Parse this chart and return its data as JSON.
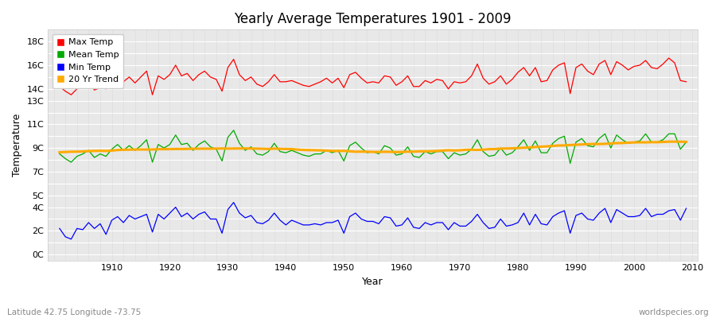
{
  "title": "Yearly Average Temperatures 1901 - 2009",
  "xlabel": "Year",
  "ylabel": "Temperature",
  "subtitle_left": "Latitude 42.75 Longitude -73.75",
  "subtitle_right": "worldspecies.org",
  "years": [
    1901,
    1902,
    1903,
    1904,
    1905,
    1906,
    1907,
    1908,
    1909,
    1910,
    1911,
    1912,
    1913,
    1914,
    1915,
    1916,
    1917,
    1918,
    1919,
    1920,
    1921,
    1922,
    1923,
    1924,
    1925,
    1926,
    1927,
    1928,
    1929,
    1930,
    1931,
    1932,
    1933,
    1934,
    1935,
    1936,
    1937,
    1938,
    1939,
    1940,
    1941,
    1942,
    1943,
    1944,
    1945,
    1946,
    1947,
    1948,
    1949,
    1950,
    1951,
    1952,
    1953,
    1954,
    1955,
    1956,
    1957,
    1958,
    1959,
    1960,
    1961,
    1962,
    1963,
    1964,
    1965,
    1966,
    1967,
    1968,
    1969,
    1970,
    1971,
    1972,
    1973,
    1974,
    1975,
    1976,
    1977,
    1978,
    1979,
    1980,
    1981,
    1982,
    1983,
    1984,
    1985,
    1986,
    1987,
    1988,
    1989,
    1990,
    1991,
    1992,
    1993,
    1994,
    1995,
    1996,
    1997,
    1998,
    1999,
    2000,
    2001,
    2002,
    2003,
    2004,
    2005,
    2006,
    2007,
    2008,
    2009
  ],
  "max_temp": [
    14.2,
    13.8,
    13.5,
    14.0,
    14.3,
    14.5,
    13.9,
    14.1,
    14.0,
    14.8,
    15.2,
    14.6,
    15.0,
    14.5,
    15.0,
    15.5,
    13.5,
    15.1,
    14.8,
    15.2,
    16.0,
    15.1,
    15.3,
    14.7,
    15.2,
    15.5,
    15.0,
    14.8,
    13.8,
    15.8,
    16.5,
    15.2,
    14.7,
    15.0,
    14.4,
    14.2,
    14.6,
    15.2,
    14.6,
    14.6,
    14.7,
    14.5,
    14.3,
    14.2,
    14.4,
    14.6,
    14.9,
    14.5,
    14.9,
    14.1,
    15.2,
    15.4,
    14.9,
    14.5,
    14.6,
    14.5,
    15.1,
    15.0,
    14.3,
    14.6,
    15.1,
    14.2,
    14.2,
    14.7,
    14.5,
    14.8,
    14.7,
    14.0,
    14.6,
    14.5,
    14.6,
    15.1,
    16.1,
    14.9,
    14.4,
    14.6,
    15.1,
    14.4,
    14.8,
    15.4,
    15.8,
    15.1,
    15.8,
    14.6,
    14.7,
    15.6,
    16.0,
    16.2,
    13.6,
    15.8,
    16.1,
    15.5,
    15.2,
    16.1,
    16.4,
    15.2,
    16.3,
    16.0,
    15.6,
    15.9,
    16.0,
    16.4,
    15.8,
    15.7,
    16.1,
    16.6,
    16.2,
    14.7,
    14.6
  ],
  "mean_temp": [
    8.5,
    8.1,
    7.8,
    8.3,
    8.5,
    8.8,
    8.2,
    8.5,
    8.3,
    8.9,
    9.3,
    8.8,
    9.2,
    8.8,
    9.2,
    9.7,
    7.8,
    9.3,
    9.0,
    9.3,
    10.1,
    9.3,
    9.4,
    8.8,
    9.3,
    9.6,
    9.1,
    8.9,
    7.9,
    9.9,
    10.5,
    9.4,
    8.8,
    9.1,
    8.5,
    8.4,
    8.7,
    9.4,
    8.7,
    8.6,
    8.8,
    8.6,
    8.4,
    8.3,
    8.5,
    8.5,
    8.8,
    8.6,
    8.8,
    7.9,
    9.2,
    9.5,
    9.0,
    8.6,
    8.7,
    8.5,
    9.2,
    9.0,
    8.4,
    8.5,
    9.1,
    8.3,
    8.2,
    8.7,
    8.5,
    8.7,
    8.7,
    8.1,
    8.6,
    8.4,
    8.5,
    8.9,
    9.7,
    8.7,
    8.3,
    8.4,
    9.0,
    8.4,
    8.6,
    9.1,
    9.7,
    8.8,
    9.6,
    8.6,
    8.6,
    9.4,
    9.8,
    10.0,
    7.7,
    9.5,
    9.8,
    9.2,
    9.1,
    9.8,
    10.2,
    9.0,
    10.1,
    9.7,
    9.4,
    9.5,
    9.6,
    10.2,
    9.5,
    9.5,
    9.7,
    10.2,
    10.2,
    8.9,
    9.5
  ],
  "min_temp": [
    2.2,
    1.5,
    1.3,
    2.2,
    2.1,
    2.7,
    2.2,
    2.6,
    1.7,
    2.9,
    3.2,
    2.7,
    3.3,
    3.0,
    3.2,
    3.4,
    1.9,
    3.4,
    3.0,
    3.5,
    4.0,
    3.2,
    3.5,
    3.0,
    3.4,
    3.6,
    3.0,
    3.0,
    1.8,
    3.8,
    4.4,
    3.5,
    3.1,
    3.3,
    2.7,
    2.6,
    2.9,
    3.5,
    2.9,
    2.5,
    2.9,
    2.7,
    2.5,
    2.5,
    2.6,
    2.5,
    2.7,
    2.7,
    2.9,
    1.8,
    3.2,
    3.5,
    3.0,
    2.8,
    2.8,
    2.6,
    3.2,
    3.1,
    2.4,
    2.5,
    3.1,
    2.3,
    2.2,
    2.7,
    2.5,
    2.7,
    2.7,
    2.1,
    2.7,
    2.4,
    2.4,
    2.8,
    3.4,
    2.7,
    2.2,
    2.3,
    3.0,
    2.4,
    2.5,
    2.7,
    3.5,
    2.5,
    3.4,
    2.6,
    2.5,
    3.2,
    3.5,
    3.7,
    1.8,
    3.3,
    3.5,
    3.0,
    2.9,
    3.5,
    3.9,
    2.7,
    3.8,
    3.5,
    3.2,
    3.2,
    3.3,
    3.9,
    3.2,
    3.4,
    3.4,
    3.7,
    3.8,
    2.9,
    3.9
  ],
  "legend_labels": [
    "Max Temp",
    "Mean Temp",
    "Min Temp",
    "20 Yr Trend"
  ],
  "line_colors": [
    "#ff0000",
    "#00aa00",
    "#0000ff",
    "#ffaa00"
  ],
  "shown_yticks": [
    0,
    2,
    4,
    5,
    7,
    9,
    11,
    13,
    14,
    16,
    18
  ],
  "ylim": [
    -0.5,
    19.0
  ],
  "xlim": [
    1899,
    2011
  ]
}
